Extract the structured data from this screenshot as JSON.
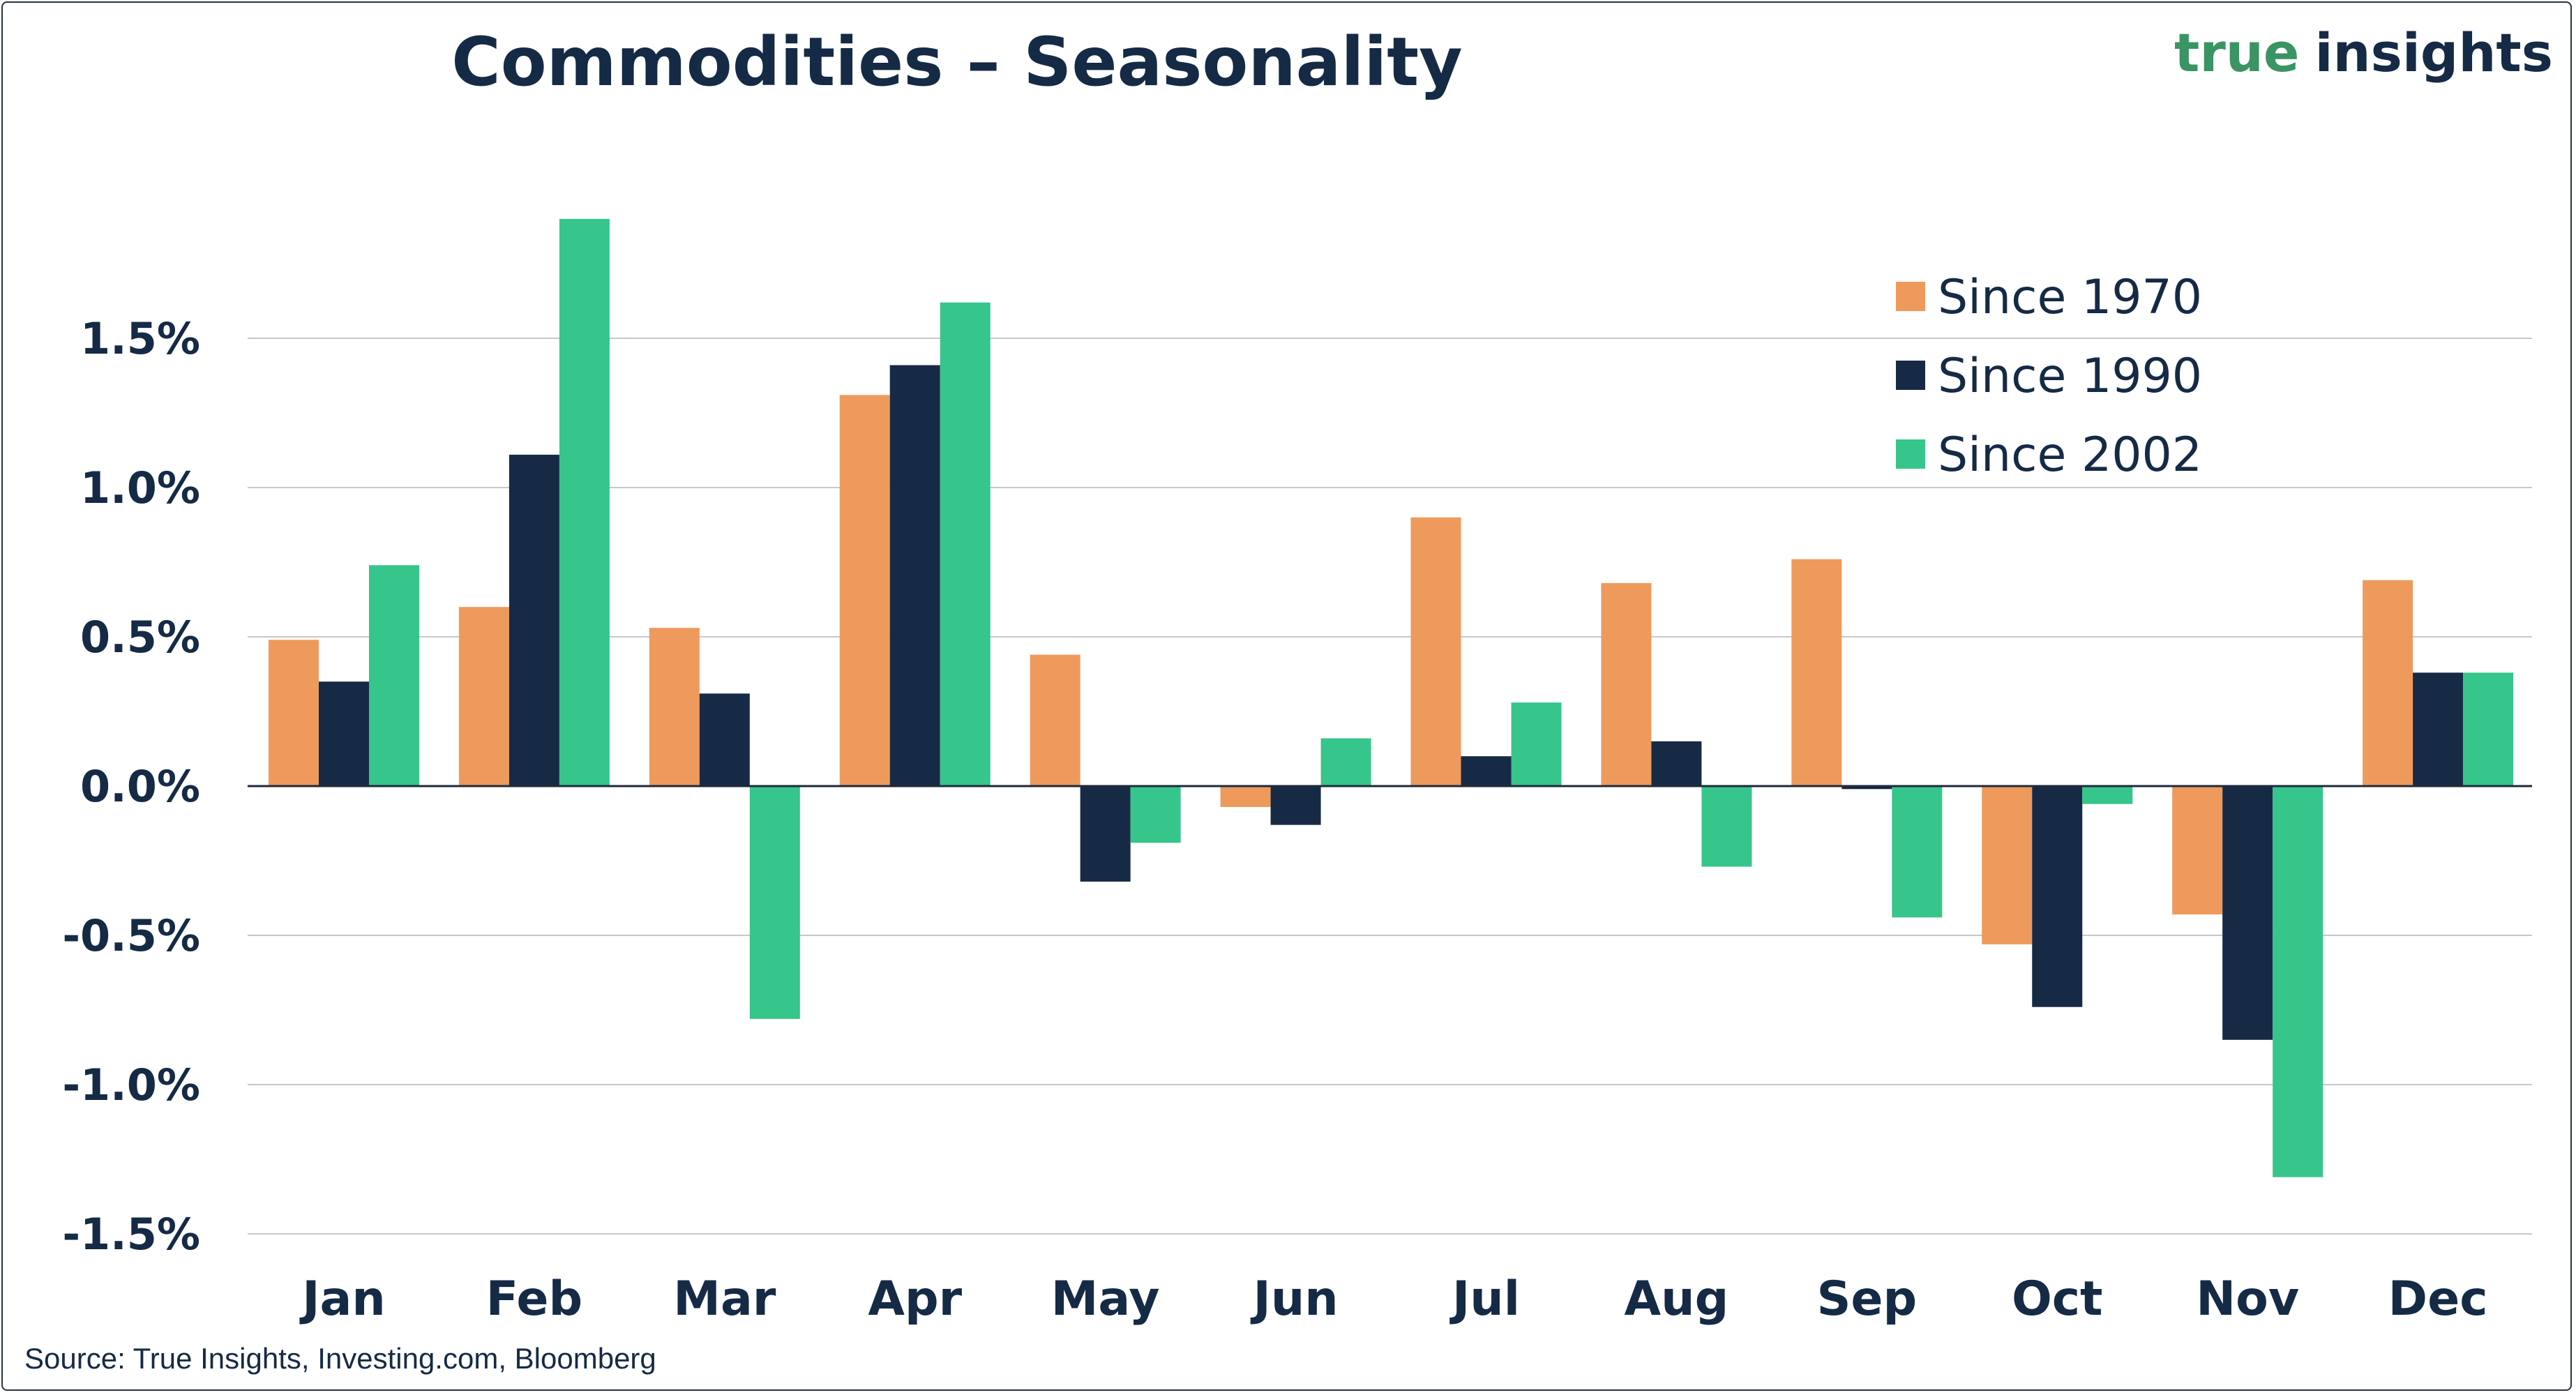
{
  "title": "Commodities – Seasonality",
  "brand": {
    "part1": "true",
    "part2": "insights",
    "color1": "#3a9463",
    "color2": "#152a45"
  },
  "source": "Source: True Insights, Investing.com, Bloomberg",
  "colors": {
    "text": "#152a45",
    "grid": "#c8c8c8",
    "axis": "#1f2a3a"
  },
  "chart_data": {
    "type": "bar",
    "categories": [
      "Jan",
      "Feb",
      "Mar",
      "Apr",
      "May",
      "Jun",
      "Jul",
      "Aug",
      "Sep",
      "Oct",
      "Nov",
      "Dec"
    ],
    "series": [
      {
        "name": "Since 1970",
        "color": "#ee9a5c",
        "values": [
          0.49,
          0.6,
          0.53,
          1.31,
          0.44,
          -0.07,
          0.9,
          0.68,
          0.76,
          -0.53,
          -0.43,
          0.69
        ]
      },
      {
        "name": "Since 1990",
        "color": "#172a45",
        "values": [
          0.35,
          1.11,
          0.31,
          1.41,
          -0.32,
          -0.13,
          0.1,
          0.15,
          -0.01,
          -0.74,
          -0.85,
          0.38
        ]
      },
      {
        "name": "Since 2002",
        "color": "#36c58b",
        "values": [
          0.74,
          1.9,
          -0.78,
          1.62,
          -0.19,
          0.16,
          0.28,
          -0.27,
          -0.44,
          -0.06,
          -1.31,
          0.38
        ]
      }
    ],
    "yticks": [
      "-1.5%",
      "-1.0%",
      "-0.5%",
      "0.0%",
      "0.5%",
      "1.0%",
      "1.5%"
    ],
    "ytick_values": [
      -1.5,
      -1.0,
      -0.5,
      0.0,
      0.5,
      1.0,
      1.5
    ],
    "ylim": [
      -1.5,
      1.9
    ],
    "grid": true,
    "legend_position": "top-right"
  }
}
